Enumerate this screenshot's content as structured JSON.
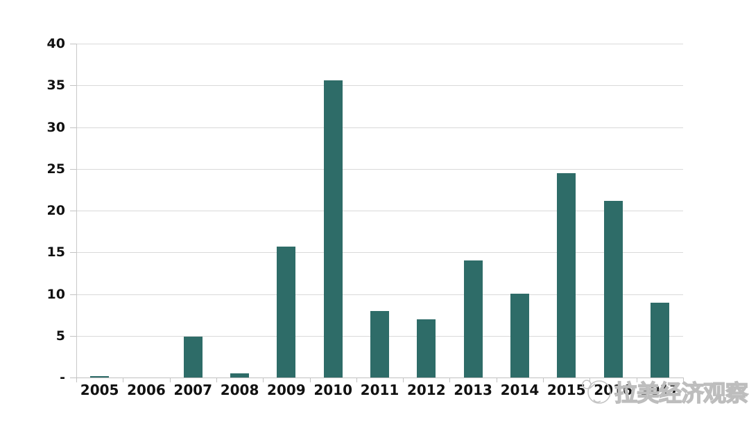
{
  "page": {
    "background": "#ffffff"
  },
  "watermark": {
    "text": "拉美经济观察",
    "icon": "wechat-account-logo",
    "color": "#bdbdbd"
  },
  "chart_data": {
    "type": "bar",
    "title": "",
    "xlabel": "",
    "ylabel": "",
    "categories": [
      "2005",
      "2006",
      "2007",
      "2008",
      "2009",
      "2010",
      "2011",
      "2012",
      "2013",
      "2014",
      "2015",
      "2016",
      "2017"
    ],
    "values": [
      0.1,
      0,
      4.9,
      0.5,
      15.7,
      35.6,
      8,
      7,
      14,
      10,
      24.5,
      21.2,
      9
    ],
    "ylim": [
      0,
      40
    ],
    "y_ticks": [
      {
        "value": 40,
        "label": "40"
      },
      {
        "value": 35,
        "label": "35"
      },
      {
        "value": 30,
        "label": "30"
      },
      {
        "value": 25,
        "label": "25"
      },
      {
        "value": 20,
        "label": "20"
      },
      {
        "value": 15,
        "label": "15"
      },
      {
        "value": 10,
        "label": "10"
      },
      {
        "value": 5,
        "label": "5"
      },
      {
        "value": 0,
        "label": "-"
      }
    ],
    "grid": true,
    "legend": "none",
    "bar_color": "#2e6c68",
    "gridline_color": "#d9d9d9",
    "axis_color": "#bfbfbf",
    "label_color": "#111111"
  }
}
